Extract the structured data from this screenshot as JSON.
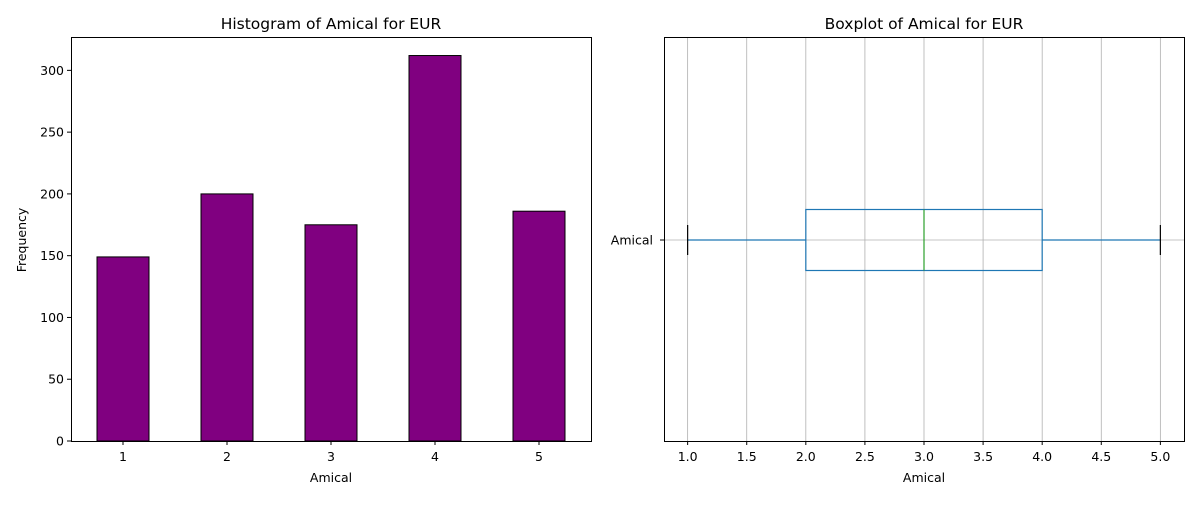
{
  "colors": {
    "bar_fill": "#800080",
    "bar_edge": "#000000",
    "box_line": "#1f77b4",
    "median_line": "#2ca02c",
    "whisker_cap": "#000000",
    "grid": "#b0b0b0"
  },
  "chart_data": [
    {
      "type": "bar",
      "title": "Histogram of Amical for EUR",
      "xlabel": "Amical",
      "ylabel": "Frequency",
      "categories": [
        "1",
        "2",
        "3",
        "4",
        "5"
      ],
      "values": [
        149,
        200,
        175,
        312,
        186
      ],
      "ylim": [
        0,
        327
      ],
      "yticks": [
        0,
        50,
        100,
        150,
        200,
        250,
        300
      ],
      "ytick_labels": [
        "0",
        "50",
        "100",
        "150",
        "200",
        "250",
        "300"
      ],
      "grid": false
    },
    {
      "type": "boxplot",
      "title": "Boxplot of Amical for EUR",
      "xlabel": "Amical",
      "orientation": "horizontal",
      "category": "Amical",
      "min": 1.0,
      "q1": 2.0,
      "median": 3.0,
      "q3": 4.0,
      "max": 5.0,
      "xlim": [
        0.8,
        5.2
      ],
      "xticks": [
        1.0,
        1.5,
        2.0,
        2.5,
        3.0,
        3.5,
        4.0,
        4.5,
        5.0
      ],
      "xtick_labels": [
        "1.0",
        "1.5",
        "2.0",
        "2.5",
        "3.0",
        "3.5",
        "4.0",
        "4.5",
        "5.0"
      ],
      "grid": true
    }
  ]
}
